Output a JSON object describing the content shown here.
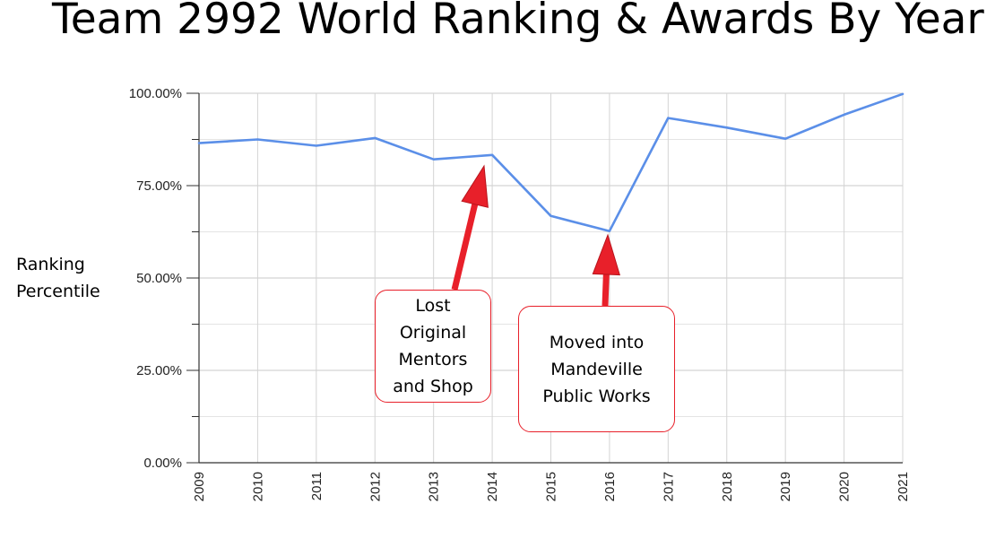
{
  "title": "Team 2992 World Ranking & Awards By Year",
  "ylabel_lines": [
    "Ranking",
    "Percentile"
  ],
  "chart_data": {
    "type": "line",
    "title": "Team 2992 World Ranking & Awards By Year",
    "xlabel": "",
    "ylabel": "Ranking Percentile",
    "x": [
      "2009",
      "2010",
      "2011",
      "2012",
      "2013",
      "2014",
      "2015",
      "2016",
      "2017",
      "2018",
      "2019",
      "2020",
      "2021"
    ],
    "values": [
      86.5,
      87.5,
      85.8,
      87.9,
      82.1,
      83.3,
      66.8,
      62.7,
      93.3,
      90.7,
      87.7,
      94.2,
      99.8
    ],
    "ylim": [
      0,
      100
    ],
    "yticks": [
      "0.00%",
      "25.00%",
      "50.00%",
      "75.00%",
      "100.00%"
    ],
    "series_color": "#5b8fe8",
    "grid": true,
    "annotation_color": "#e8202a",
    "annotations": [
      {
        "text_lines": [
          "Lost",
          "Original",
          "Mentors",
          "and Shop"
        ],
        "points_to": "2014"
      },
      {
        "text_lines": [
          "Moved into",
          "Mandeville",
          "Public Works"
        ],
        "points_to": "2016"
      }
    ]
  }
}
